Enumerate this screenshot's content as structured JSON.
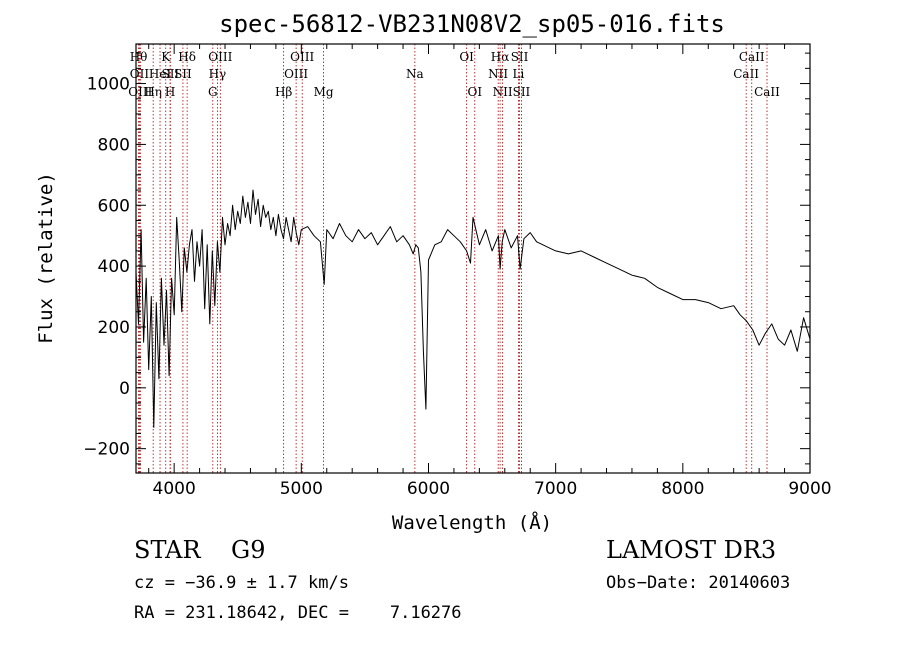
{
  "chart_data": {
    "type": "line",
    "title": "spec-56812-VB231N08V2_sp05-016.fits",
    "xlabel": "Wavelength (Å)",
    "ylabel": "Flux (relative)",
    "xlim": [
      3700,
      9000
    ],
    "ylim": [
      -280,
      1130
    ],
    "xticks": [
      4000,
      5000,
      6000,
      7000,
      8000,
      9000
    ],
    "xtick_labels": [
      "4000",
      "5000",
      "6000",
      "7000",
      "8000",
      "9000"
    ],
    "yticks": [
      -200,
      0,
      200,
      400,
      600,
      800,
      1000
    ],
    "ytick_labels": [
      "−200",
      "0",
      "200",
      "400",
      "600",
      "800",
      "1000"
    ],
    "series": [
      {
        "x": [
          3700,
          3720,
          3740,
          3760,
          3780,
          3800,
          3820,
          3840,
          3860,
          3880,
          3900,
          3920,
          3940,
          3960,
          3980,
          4000,
          4020,
          4040,
          4060,
          4080,
          4100,
          4120,
          4140,
          4160,
          4180,
          4200,
          4220,
          4240,
          4260,
          4280,
          4300,
          4320,
          4340,
          4360,
          4380,
          4400,
          4420,
          4440,
          4460,
          4480,
          4500,
          4520,
          4540,
          4560,
          4580,
          4600,
          4620,
          4640,
          4660,
          4680,
          4700,
          4720,
          4740,
          4760,
          4780,
          4800,
          4820,
          4840,
          4860,
          4880,
          4900,
          4920,
          4940,
          4960,
          4980,
          5000,
          5050,
          5100,
          5150,
          5180,
          5200,
          5250,
          5300,
          5350,
          5400,
          5450,
          5500,
          5550,
          5600,
          5650,
          5700,
          5750,
          5800,
          5850,
          5880,
          5900,
          5920,
          5940,
          5960,
          5980,
          6000,
          6050,
          6100,
          6150,
          6200,
          6250,
          6300,
          6330,
          6350,
          6400,
          6450,
          6500,
          6550,
          6563,
          6580,
          6600,
          6650,
          6700,
          6720,
          6750,
          6800,
          6850,
          6900,
          6950,
          7000,
          7100,
          7200,
          7300,
          7400,
          7500,
          7600,
          7700,
          7800,
          7900,
          8000,
          8100,
          8200,
          8300,
          8400,
          8450,
          8500,
          8550,
          8600,
          8650,
          8700,
          8750,
          8800,
          8850,
          8900,
          8950,
          9000
        ],
        "y": [
          380,
          210,
          520,
          150,
          360,
          60,
          300,
          -130,
          280,
          30,
          360,
          140,
          320,
          40,
          360,
          240,
          560,
          420,
          250,
          460,
          380,
          470,
          520,
          350,
          480,
          400,
          520,
          260,
          470,
          210,
          450,
          270,
          480,
          380,
          560,
          470,
          540,
          500,
          600,
          520,
          580,
          540,
          630,
          560,
          610,
          540,
          650,
          570,
          620,
          530,
          600,
          560,
          580,
          520,
          560,
          500,
          570,
          520,
          490,
          560,
          520,
          480,
          560,
          510,
          470,
          520,
          530,
          500,
          480,
          340,
          520,
          490,
          540,
          500,
          480,
          520,
          490,
          510,
          470,
          500,
          530,
          480,
          500,
          470,
          440,
          470,
          460,
          380,
          120,
          -70,
          420,
          470,
          480,
          520,
          500,
          480,
          450,
          410,
          560,
          470,
          520,
          450,
          500,
          390,
          480,
          520,
          460,
          500,
          390,
          490,
          510,
          480,
          470,
          460,
          450,
          440,
          450,
          430,
          410,
          390,
          370,
          360,
          330,
          310,
          290,
          290,
          280,
          260,
          270,
          240,
          220,
          190,
          140,
          180,
          210,
          160,
          140,
          190,
          120,
          230,
          160
        ]
      }
    ],
    "line_markers": [
      {
        "w": 3720,
        "l": "Hθ",
        "r": 1
      },
      {
        "w": 3727,
        "l": "OII",
        "r": 2
      },
      {
        "w": 3734,
        "l": "OIII",
        "r": 3
      },
      {
        "w": 3835,
        "l": "Hη",
        "r": 3
      },
      {
        "w": 3889,
        "l": "HeI",
        "r": 2
      },
      {
        "w": 3934,
        "l": "K",
        "r": 1
      },
      {
        "w": 3968,
        "l": "H",
        "r": 3
      },
      {
        "w": 3970,
        "l": "SII",
        "r": 2
      },
      {
        "w": 4102,
        "l": "Hδ",
        "r": 1
      },
      {
        "w": 4069,
        "l": "SII",
        "r": 2
      },
      {
        "w": 4304,
        "l": "G",
        "r": 3
      },
      {
        "w": 4340,
        "l": "Hγ",
        "r": 2
      },
      {
        "w": 4363,
        "l": "OIII",
        "r": 1
      },
      {
        "w": 4861,
        "l": "Hβ",
        "r": 3
      },
      {
        "w": 4959,
        "l": "OIII",
        "r": 2
      },
      {
        "w": 5007,
        "l": "OIII",
        "r": 1
      },
      {
        "w": 5175,
        "l": "Mg",
        "r": 3
      },
      {
        "w": 5893,
        "l": "Na",
        "r": 2
      },
      {
        "w": 6300,
        "l": "OI",
        "r": 1
      },
      {
        "w": 6364,
        "l": "OI",
        "r": 3
      },
      {
        "w": 6548,
        "l": "NII",
        "r": 2
      },
      {
        "w": 6563,
        "l": "Hα",
        "r": 1
      },
      {
        "w": 6583,
        "l": "NII",
        "r": 3
      },
      {
        "w": 6707,
        "l": "Li",
        "r": 2
      },
      {
        "w": 6716,
        "l": "SII",
        "r": 1
      },
      {
        "w": 6731,
        "l": "SII",
        "r": 3
      },
      {
        "w": 8498,
        "l": "CaII",
        "r": 2
      },
      {
        "w": 8542,
        "l": "CaII",
        "r": 1
      },
      {
        "w": 8662,
        "l": "CaII",
        "r": 3
      }
    ]
  },
  "info": {
    "class_line": "STAR    G9",
    "survey": "LAMOST DR3",
    "cz": "cz = −36.9 ± 1.7 km/s",
    "obs_date": "Obs−Date: 20140603",
    "radec": "RA = 231.18642, DEC =    7.16276"
  }
}
